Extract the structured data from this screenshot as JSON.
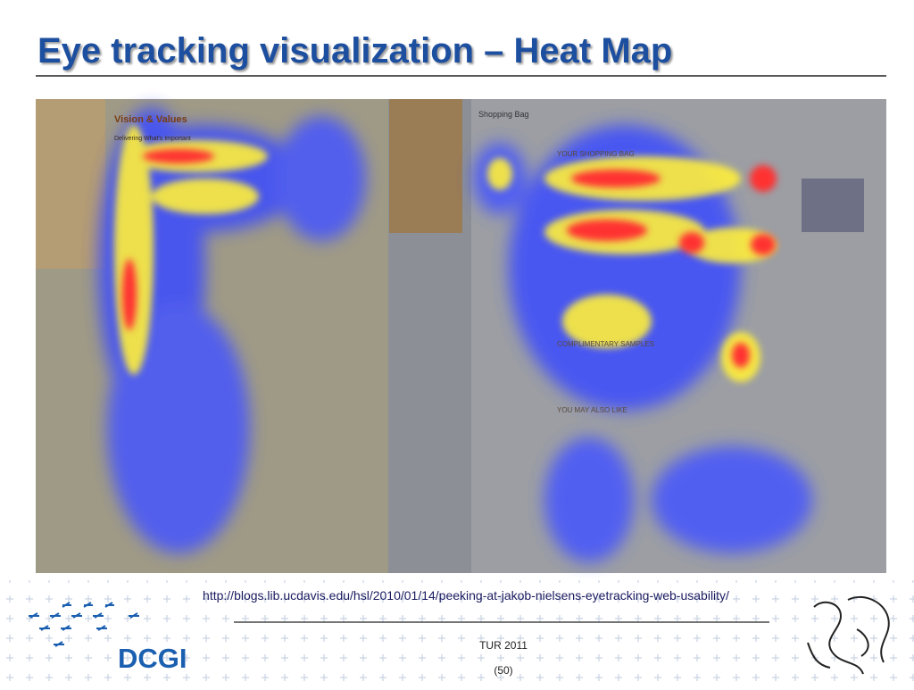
{
  "header": {
    "title": "Eye tracking visualization – Heat Map"
  },
  "figure": {
    "left_page": {
      "heading": "Vision & Values",
      "subheading": "Delivering What's Important"
    },
    "right_page": {
      "heading": "Shopping Bag",
      "sections": [
        "YOUR SHOPPING BAG",
        "COMPLIMENTARY SAMPLES",
        "YOU MAY ALSO LIKE"
      ]
    }
  },
  "source": "http://blogs.lib.ucdavis.edu/hsl/2010/01/14/peeking-at-jakob-nielsens-eyetracking-web-usability/",
  "footer": {
    "logo": "DCGI",
    "event": "TUR 2011",
    "page": "(50)"
  }
}
